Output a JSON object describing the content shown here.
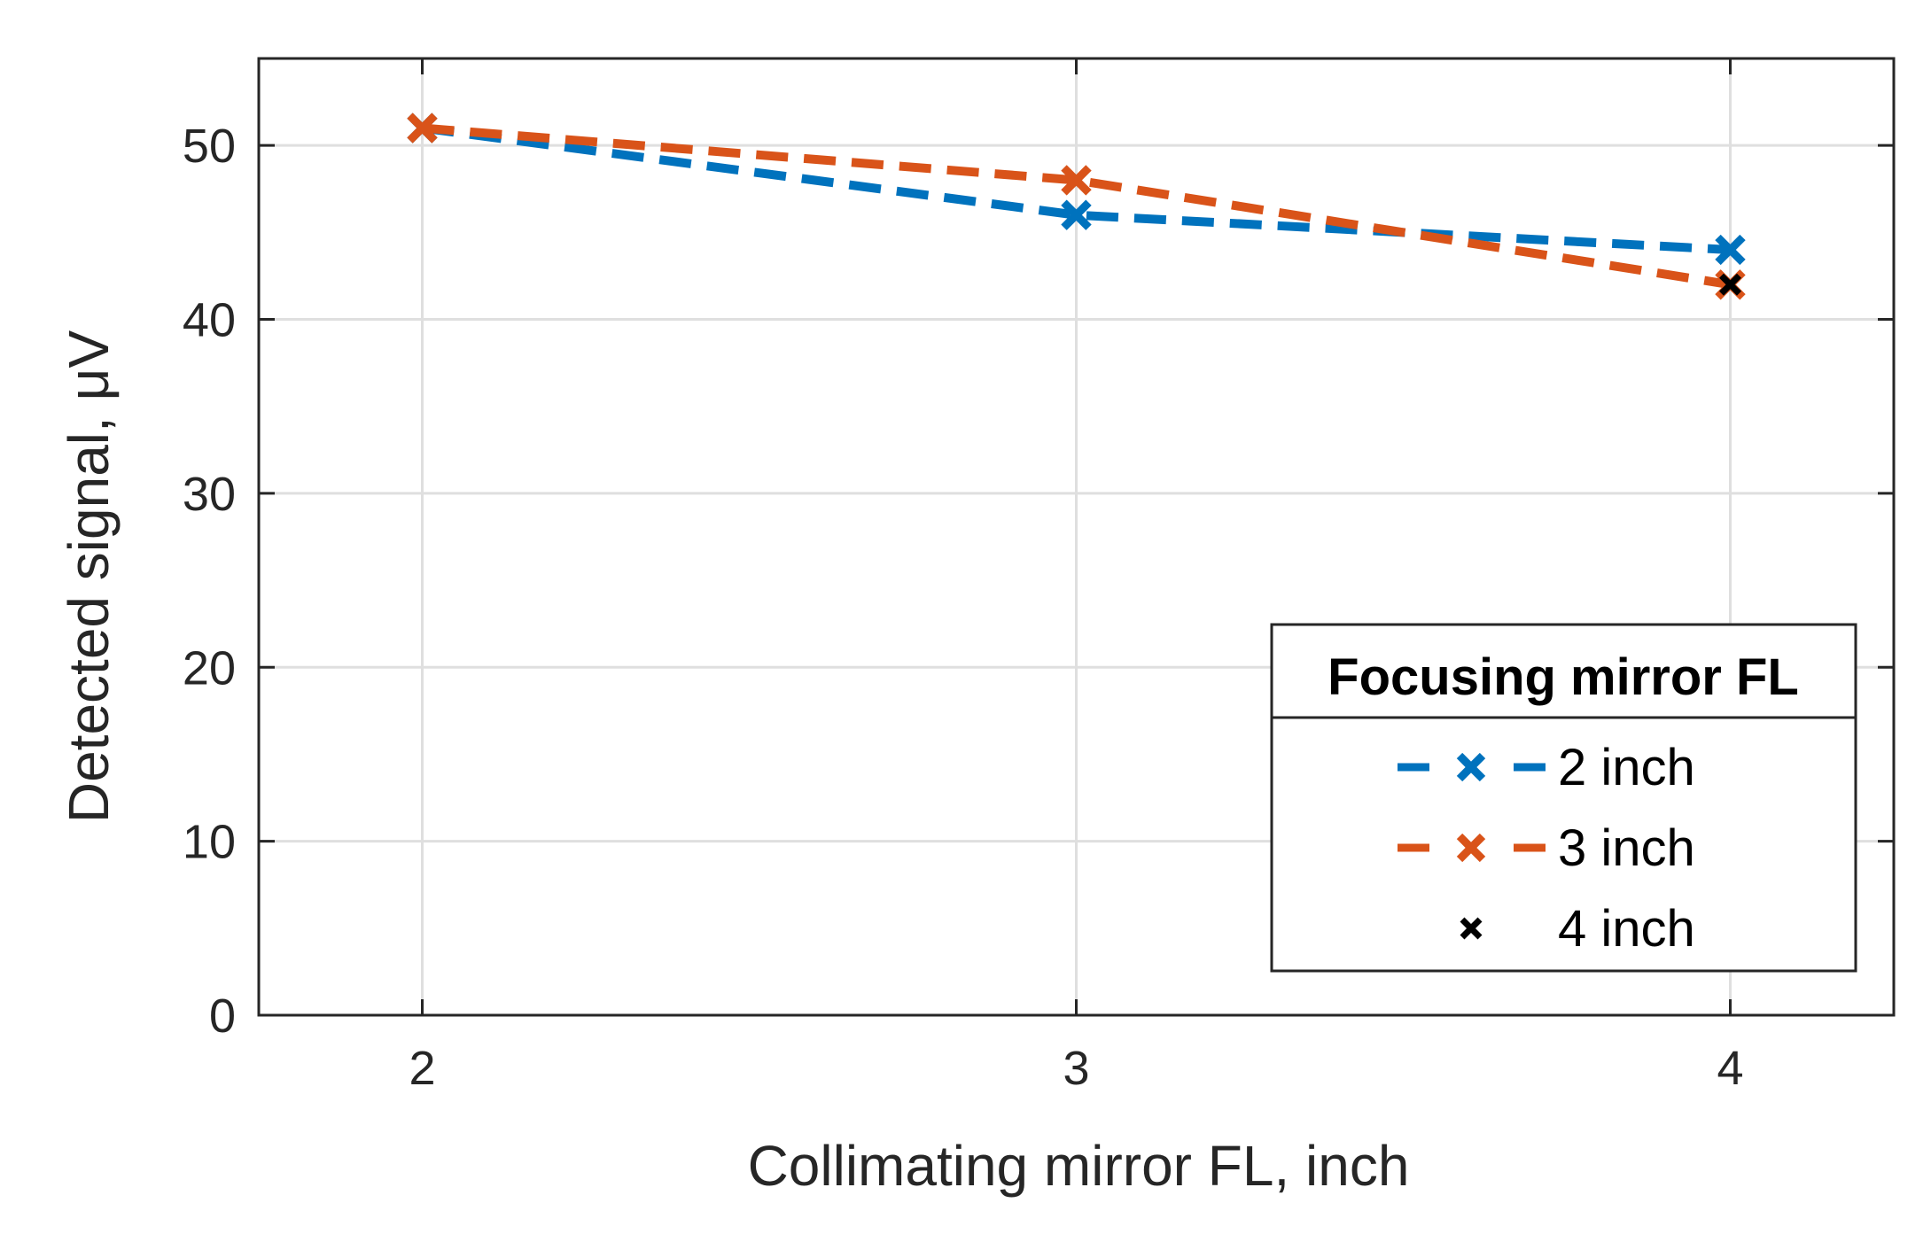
{
  "chart_data": {
    "type": "line",
    "title": "",
    "xlabel": "Collimating mirror FL, inch",
    "ylabel_text": "Detected signal, ",
    "ylabel_unit": "μV",
    "x": [
      2,
      3,
      4
    ],
    "xlim": [
      1.75,
      4.25
    ],
    "ylim": [
      0,
      55
    ],
    "xticks": [
      2,
      3,
      4
    ],
    "yticks": [
      0,
      10,
      20,
      30,
      40,
      50
    ],
    "grid": true,
    "legend": {
      "title": "Focusing mirror FL",
      "position": "bottom-right"
    },
    "series": [
      {
        "name": "2 inch",
        "x": [
          2,
          3,
          4
        ],
        "values": [
          51,
          46,
          44
        ],
        "color": "#0072BD",
        "line": "dashed",
        "marker": "x"
      },
      {
        "name": "3 inch",
        "x": [
          2,
          3,
          4
        ],
        "values": [
          51,
          48,
          42
        ],
        "color": "#D95319",
        "line": "dashed",
        "marker": "x"
      },
      {
        "name": "4 inch",
        "x": [
          4
        ],
        "values": [
          42
        ],
        "color": "#000000",
        "line": "none",
        "marker": "x"
      }
    ]
  }
}
